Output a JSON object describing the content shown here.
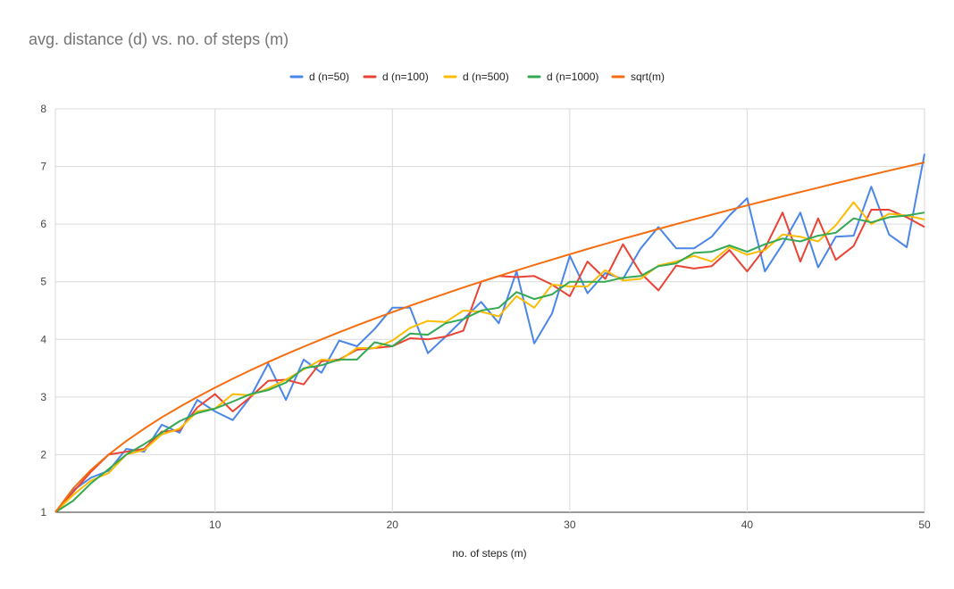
{
  "chart_data": {
    "type": "line",
    "title": "avg. distance (d) vs. no. of steps (m)",
    "xlabel": "no. of steps (m)",
    "ylabel": "",
    "xlim": [
      1,
      50
    ],
    "ylim": [
      1,
      8
    ],
    "xticks": [
      10,
      20,
      30,
      40,
      50
    ],
    "yticks": [
      1,
      2,
      3,
      4,
      5,
      6,
      7,
      8
    ],
    "grid": true,
    "legend": "top-center",
    "x": [
      1,
      2,
      3,
      4,
      5,
      6,
      7,
      8,
      9,
      10,
      11,
      12,
      13,
      14,
      15,
      16,
      17,
      18,
      19,
      20,
      21,
      22,
      23,
      24,
      25,
      26,
      27,
      28,
      29,
      30,
      31,
      32,
      33,
      34,
      35,
      36,
      37,
      38,
      39,
      40,
      41,
      42,
      43,
      44,
      45,
      46,
      47,
      48,
      49,
      50
    ],
    "series": [
      {
        "name": "d (n=50)",
        "color": "#4a86e8",
        "values": [
          1.0,
          1.38,
          1.6,
          1.72,
          2.1,
          2.05,
          2.52,
          2.38,
          2.95,
          2.75,
          2.6,
          3.0,
          3.58,
          2.95,
          3.65,
          3.42,
          3.98,
          3.88,
          4.18,
          4.55,
          4.55,
          3.76,
          4.05,
          4.35,
          4.65,
          4.28,
          5.18,
          3.93,
          4.45,
          5.45,
          4.8,
          5.15,
          5.05,
          5.58,
          5.95,
          5.58,
          5.58,
          5.78,
          6.15,
          6.45,
          5.18,
          5.65,
          6.2,
          5.25,
          5.78,
          5.8,
          6.65,
          5.82,
          5.6,
          7.22
        ]
      },
      {
        "name": "d (n=100)",
        "color": "#ea4335",
        "values": [
          1.0,
          1.35,
          1.7,
          2.0,
          2.05,
          2.1,
          2.4,
          2.42,
          2.82,
          3.05,
          2.75,
          3.0,
          3.28,
          3.3,
          3.22,
          3.62,
          3.65,
          3.82,
          3.85,
          3.88,
          4.02,
          4.0,
          4.05,
          4.15,
          5.0,
          5.1,
          5.08,
          5.1,
          4.95,
          4.75,
          5.35,
          5.05,
          5.65,
          5.15,
          4.85,
          5.28,
          5.23,
          5.27,
          5.55,
          5.18,
          5.58,
          6.2,
          5.35,
          6.1,
          5.38,
          5.62,
          6.25,
          6.25,
          6.12,
          5.95
        ]
      },
      {
        "name": "d (n=500)",
        "color": "#fbbc04",
        "values": [
          1.0,
          1.3,
          1.55,
          1.68,
          2.0,
          2.08,
          2.35,
          2.45,
          2.75,
          2.8,
          3.05,
          3.03,
          3.15,
          3.3,
          3.48,
          3.65,
          3.63,
          3.85,
          3.85,
          3.98,
          4.2,
          4.32,
          4.3,
          4.5,
          4.48,
          4.4,
          4.75,
          4.55,
          4.95,
          4.92,
          4.92,
          5.2,
          5.02,
          5.05,
          5.28,
          5.35,
          5.45,
          5.35,
          5.6,
          5.47,
          5.55,
          5.82,
          5.78,
          5.7,
          5.98,
          6.38,
          6.0,
          6.18,
          6.15,
          6.08
        ]
      },
      {
        "name": "d (n=1000)",
        "color": "#34a853",
        "values": [
          1.0,
          1.2,
          1.5,
          1.75,
          2.0,
          2.18,
          2.38,
          2.58,
          2.72,
          2.8,
          2.92,
          3.05,
          3.12,
          3.25,
          3.5,
          3.55,
          3.65,
          3.65,
          3.95,
          3.88,
          4.1,
          4.08,
          4.28,
          4.35,
          4.5,
          4.55,
          4.82,
          4.7,
          4.78,
          5.0,
          5.0,
          5.0,
          5.07,
          5.1,
          5.27,
          5.32,
          5.5,
          5.52,
          5.63,
          5.52,
          5.65,
          5.75,
          5.7,
          5.8,
          5.85,
          6.1,
          6.03,
          6.12,
          6.15,
          6.2
        ]
      },
      {
        "name": "sqrt(m)",
        "color": "#f46d0f",
        "values": [
          1.0,
          1.414,
          1.732,
          2.0,
          2.236,
          2.449,
          2.646,
          2.828,
          3.0,
          3.162,
          3.317,
          3.464,
          3.606,
          3.742,
          3.873,
          4.0,
          4.123,
          4.243,
          4.359,
          4.472,
          4.583,
          4.69,
          4.796,
          4.899,
          5.0,
          5.099,
          5.196,
          5.292,
          5.385,
          5.477,
          5.568,
          5.657,
          5.745,
          5.831,
          5.916,
          6.0,
          6.083,
          6.164,
          6.245,
          6.325,
          6.403,
          6.481,
          6.557,
          6.633,
          6.708,
          6.782,
          6.856,
          6.928,
          7.0,
          7.071
        ]
      }
    ]
  }
}
